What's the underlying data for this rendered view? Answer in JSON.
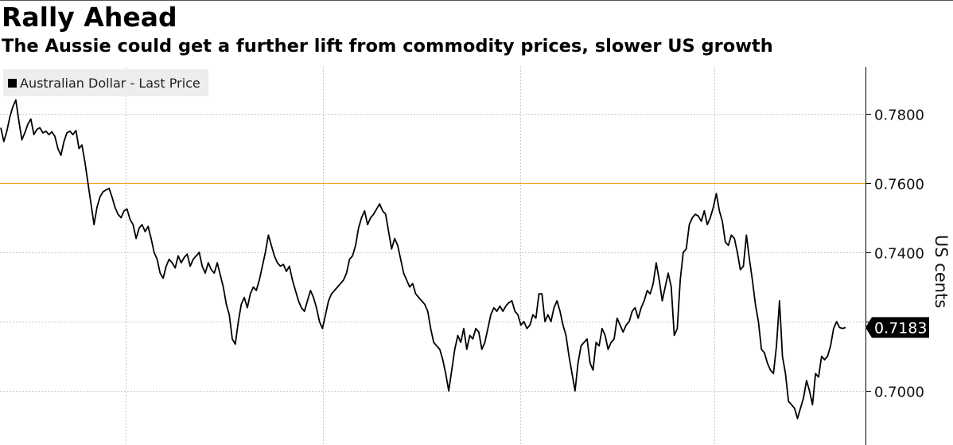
{
  "chart_data": {
    "type": "line",
    "title": "Rally Ahead",
    "subtitle": "The Aussie could get a further lift from commodity prices, slower US growth",
    "ylabel": "US cents",
    "xlabel": "",
    "ylim": [
      0.688,
      0.793
    ],
    "yticks": [
      0.7,
      0.72,
      0.74,
      0.76,
      0.78
    ],
    "ytick_labels": [
      "0.7000",
      "0.7200",
      "0.7400",
      "0.7600",
      "0.7800"
    ],
    "reference_line": {
      "value": 0.76,
      "color": "#f5a623"
    },
    "legend_position": "top-left",
    "grid": true,
    "series": [
      {
        "name": "Australian Dollar - Last Price",
        "color": "#000000",
        "last_value_label": "0.7183",
        "values": [
          0.776,
          0.772,
          0.775,
          0.779,
          0.782,
          0.784,
          0.778,
          0.7725,
          0.7745,
          0.777,
          0.7785,
          0.774,
          0.7755,
          0.776,
          0.7745,
          0.775,
          0.774,
          0.7748,
          0.7735,
          0.77,
          0.768,
          0.772,
          0.7745,
          0.775,
          0.774,
          0.7752,
          0.77,
          0.771,
          0.766,
          0.76,
          0.754,
          0.748,
          0.753,
          0.756,
          0.7575,
          0.758,
          0.7585,
          0.756,
          0.753,
          0.751,
          0.75,
          0.752,
          0.7525,
          0.7495,
          0.748,
          0.744,
          0.747,
          0.748,
          0.746,
          0.7475,
          0.744,
          0.74,
          0.738,
          0.734,
          0.7325,
          0.736,
          0.738,
          0.737,
          0.7355,
          0.739,
          0.737,
          0.7385,
          0.7395,
          0.736,
          0.738,
          0.739,
          0.74,
          0.736,
          0.734,
          0.737,
          0.735,
          0.734,
          0.737,
          0.7335,
          0.73,
          0.725,
          0.722,
          0.715,
          0.7135,
          0.72,
          0.725,
          0.727,
          0.724,
          0.728,
          0.73,
          0.729,
          0.732,
          0.736,
          0.74,
          0.745,
          0.742,
          0.739,
          0.737,
          0.736,
          0.7365,
          0.7345,
          0.736,
          0.732,
          0.729,
          0.726,
          0.724,
          0.723,
          0.726,
          0.729,
          0.727,
          0.724,
          0.72,
          0.718,
          0.722,
          0.726,
          0.728,
          0.729,
          0.73,
          0.731,
          0.732,
          0.734,
          0.738,
          0.739,
          0.742,
          0.747,
          0.75,
          0.752,
          0.748,
          0.75,
          0.751,
          0.7525,
          0.754,
          0.752,
          0.751,
          0.746,
          0.741,
          0.744,
          0.742,
          0.738,
          0.734,
          0.732,
          0.73,
          0.731,
          0.728,
          0.727,
          0.726,
          0.725,
          0.723,
          0.718,
          0.714,
          0.713,
          0.712,
          0.709,
          0.705,
          0.7,
          0.706,
          0.712,
          0.716,
          0.714,
          0.718,
          0.712,
          0.716,
          0.715,
          0.718,
          0.717,
          0.712,
          0.714,
          0.718,
          0.722,
          0.724,
          0.723,
          0.7245,
          0.723,
          0.7245,
          0.7255,
          0.726,
          0.723,
          0.722,
          0.719,
          0.72,
          0.718,
          0.719,
          0.722,
          0.721,
          0.728,
          0.728,
          0.72,
          0.722,
          0.72,
          0.724,
          0.726,
          0.723,
          0.719,
          0.716,
          0.71,
          0.705,
          0.7,
          0.708,
          0.713,
          0.714,
          0.715,
          0.708,
          0.706,
          0.714,
          0.713,
          0.718,
          0.716,
          0.712,
          0.714,
          0.715,
          0.721,
          0.719,
          0.717,
          0.719,
          0.72,
          0.723,
          0.724,
          0.721,
          0.724,
          0.726,
          0.729,
          0.728,
          0.731,
          0.737,
          0.732,
          0.726,
          0.73,
          0.734,
          0.73,
          0.716,
          0.718,
          0.732,
          0.74,
          0.741,
          0.748,
          0.75,
          0.751,
          0.7505,
          0.749,
          0.752,
          0.748,
          0.75,
          0.753,
          0.757,
          0.752,
          0.749,
          0.743,
          0.742,
          0.745,
          0.744,
          0.74,
          0.735,
          0.736,
          0.745,
          0.738,
          0.732,
          0.725,
          0.72,
          0.712,
          0.711,
          0.708,
          0.706,
          0.705,
          0.713,
          0.726,
          0.71,
          0.705,
          0.697,
          0.696,
          0.695,
          0.692,
          0.695,
          0.698,
          0.703,
          0.7,
          0.696,
          0.705,
          0.704,
          0.71,
          0.709,
          0.71,
          0.713,
          0.718,
          0.72,
          0.7183,
          0.718,
          0.7183
        ]
      }
    ]
  }
}
